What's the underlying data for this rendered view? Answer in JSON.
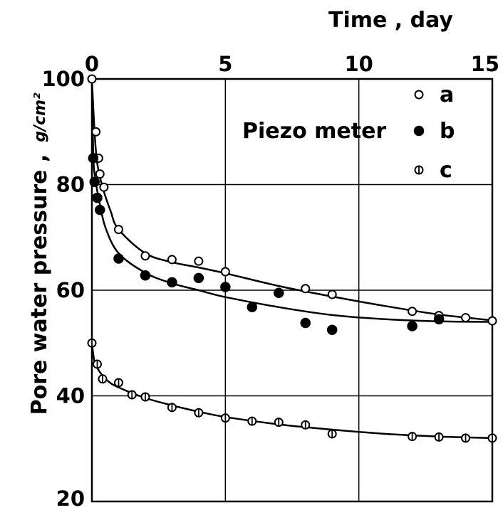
{
  "chart_data": {
    "type": "scatter",
    "title": "",
    "xlabel": "Time , day",
    "ylabel": "Pore water pressure ,",
    "yunit": "g/cm²",
    "xlim": [
      0,
      15
    ],
    "ylim": [
      20,
      100
    ],
    "x_ticks": [
      "0",
      "5",
      "10",
      "15"
    ],
    "y_ticks": [
      "20",
      "40",
      "60",
      "80",
      "100"
    ],
    "x_axis_position": "top",
    "grid": true,
    "legend_title": "Piezo meter",
    "legend_position": "top-right",
    "series": [
      {
        "name": "a",
        "marker": "open-circle",
        "points": [
          [
            0,
            100
          ],
          [
            0.15,
            90
          ],
          [
            0.25,
            85
          ],
          [
            0.3,
            82
          ],
          [
            0.45,
            79.5
          ],
          [
            1.0,
            71.5
          ],
          [
            2.0,
            66.5
          ],
          [
            3.0,
            65.8
          ],
          [
            4.0,
            65.5
          ],
          [
            5.0,
            63.5
          ],
          [
            7.0,
            59.5
          ],
          [
            8.0,
            60.3
          ],
          [
            9.0,
            59.2
          ],
          [
            12.0,
            56
          ],
          [
            13.0,
            55.2
          ],
          [
            14.0,
            54.8
          ],
          [
            15.0,
            54.2
          ]
        ],
        "curve": [
          [
            0,
            100
          ],
          [
            0.1,
            90
          ],
          [
            0.2,
            84
          ],
          [
            0.4,
            79.5
          ],
          [
            0.7,
            75
          ],
          [
            1.0,
            71.5
          ],
          [
            2.0,
            67
          ],
          [
            3.0,
            65.3
          ],
          [
            4.0,
            64.3
          ],
          [
            5.0,
            63.2
          ],
          [
            7.0,
            60.8
          ],
          [
            9.0,
            58.8
          ],
          [
            11.0,
            57
          ],
          [
            13.0,
            55.4
          ],
          [
            15.0,
            54.3
          ]
        ]
      },
      {
        "name": "b",
        "marker": "filled-circle",
        "points": [
          [
            0.05,
            85
          ],
          [
            0.1,
            80.5
          ],
          [
            0.2,
            77.5
          ],
          [
            0.3,
            75.2
          ],
          [
            1.0,
            66
          ],
          [
            2.0,
            62.8
          ],
          [
            3.0,
            61.5
          ],
          [
            4.0,
            62.3
          ],
          [
            5.0,
            60.6
          ],
          [
            6.0,
            56.8
          ],
          [
            7.0,
            59.5
          ],
          [
            8.0,
            53.8
          ],
          [
            9.0,
            52.5
          ],
          [
            12.0,
            53.2
          ],
          [
            13.0,
            54.5
          ]
        ],
        "curve": [
          [
            0,
            100
          ],
          [
            0.05,
            86
          ],
          [
            0.1,
            82
          ],
          [
            0.25,
            77.5
          ],
          [
            0.5,
            72
          ],
          [
            1.0,
            67
          ],
          [
            2.0,
            63.3
          ],
          [
            3.0,
            61.3
          ],
          [
            4.0,
            60
          ],
          [
            5.0,
            58.7
          ],
          [
            7.0,
            56.8
          ],
          [
            9.0,
            55.3
          ],
          [
            11.0,
            54.5
          ],
          [
            13.0,
            54.1
          ],
          [
            15.0,
            54
          ]
        ]
      },
      {
        "name": "c",
        "marker": "hatched-circle",
        "points": [
          [
            0,
            50
          ],
          [
            0.2,
            46
          ],
          [
            0.4,
            43.2
          ],
          [
            1.0,
            42.5
          ],
          [
            1.5,
            40.2
          ],
          [
            2.0,
            39.8
          ],
          [
            3.0,
            37.8
          ],
          [
            4.0,
            36.8
          ],
          [
            5.0,
            35.8
          ],
          [
            6.0,
            35.2
          ],
          [
            7.0,
            35
          ],
          [
            8.0,
            34.5
          ],
          [
            9.0,
            32.8
          ],
          [
            12.0,
            32.3
          ],
          [
            13.0,
            32.2
          ],
          [
            14.0,
            32
          ],
          [
            15.0,
            32
          ]
        ],
        "curve": [
          [
            0,
            50
          ],
          [
            0.1,
            46.5
          ],
          [
            0.3,
            44.5
          ],
          [
            0.6,
            42.8
          ],
          [
            1.0,
            41.6
          ],
          [
            2.0,
            39.6
          ],
          [
            3.0,
            38.2
          ],
          [
            4.0,
            37
          ],
          [
            5.0,
            36
          ],
          [
            7.0,
            34.6
          ],
          [
            9.0,
            33.6
          ],
          [
            11.0,
            32.8
          ],
          [
            13.0,
            32.3
          ],
          [
            15.0,
            32
          ]
        ]
      }
    ]
  }
}
